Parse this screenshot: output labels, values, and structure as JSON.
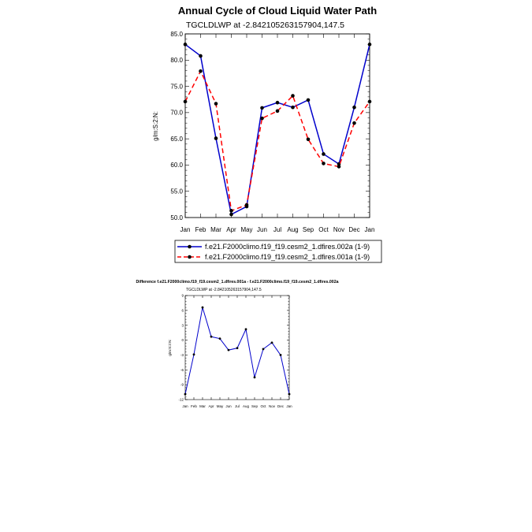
{
  "chart_data": [
    {
      "type": "line",
      "title": "Annual Cycle of Cloud Liquid Water Path",
      "subtitle": "TGCLDLWP at -2.842105263157904,147.5",
      "xlabel": "",
      "ylabel": "g/m:S:2:N:",
      "categories": [
        "Jan",
        "Feb",
        "Mar",
        "Apr",
        "May",
        "Jun",
        "Jul",
        "Aug",
        "Sep",
        "Oct",
        "Nov",
        "Dec",
        "Jan"
      ],
      "ylim": [
        50.0,
        85.0
      ],
      "yticks": [
        "50.0",
        "55.0",
        "60.0",
        "65.0",
        "70.0",
        "75.0",
        "80.0",
        "85.0"
      ],
      "legend_position": "bottom",
      "series": [
        {
          "name": "f.e21.F2000climo.f19_f19.cesm2_1.dfires.002a (1-9)",
          "color": "#0000cc",
          "style": "solid",
          "values": [
            83.0,
            80.8,
            65.1,
            50.6,
            52.1,
            70.9,
            71.9,
            71.0,
            72.4,
            62.1,
            60.2,
            71.0,
            83.0
          ]
        },
        {
          "name": "f.e21.F2000climo.f19_f19.cesm2_1.dfires.001a (1-9)",
          "color": "#ff0000",
          "style": "dashed",
          "values": [
            72.1,
            77.9,
            71.7,
            51.3,
            52.4,
            68.9,
            70.3,
            73.2,
            64.9,
            60.3,
            59.7,
            68.0,
            72.1
          ]
        }
      ]
    },
    {
      "type": "line",
      "title": "Difference f.e21.F2000climo.f19_f19.cesm2_1.dfires.001a - f.e21.F2000climo.f19_f19.cesm2_1.dfires.002a",
      "subtitle": "TGCLDLWP at -2.842105263157904,147.5",
      "xlabel": "",
      "ylabel": "g/m:S:2:N:",
      "categories": [
        "Jan",
        "Feb",
        "Mar",
        "Apr",
        "May",
        "Jun",
        "Jul",
        "Aug",
        "Sep",
        "Oct",
        "Nov",
        "Dec",
        "Jan"
      ],
      "ylim": [
        -12,
        9
      ],
      "yticks": [
        "-12",
        "-9",
        "-6",
        "-3",
        "0",
        "3",
        "6",
        "9"
      ],
      "series": [
        {
          "name": "difference",
          "color": "#0000cc",
          "style": "solid",
          "values": [
            -10.9,
            -2.9,
            6.6,
            0.7,
            0.3,
            -2.0,
            -1.6,
            2.2,
            -7.5,
            -1.8,
            -0.5,
            -3.0,
            -10.9
          ]
        }
      ]
    }
  ]
}
